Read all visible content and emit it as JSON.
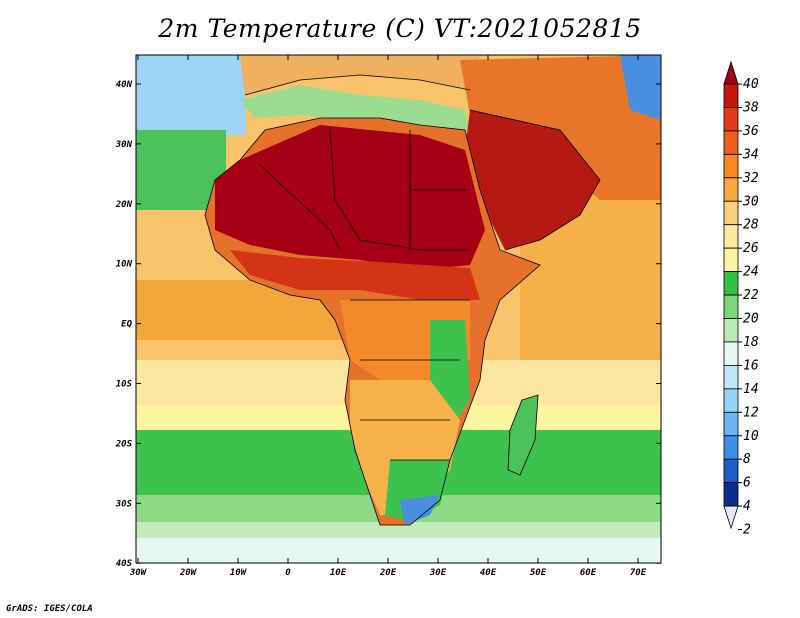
{
  "title": "2m Temperature (C) VT:2021052815",
  "credit": "GrADS: IGES/COLA",
  "map": {
    "lat_labels": [
      "40N",
      "30N",
      "20N",
      "10N",
      "EQ",
      "10S",
      "20S",
      "30S",
      "40S"
    ],
    "lon_labels": [
      "30W",
      "20W",
      "10W",
      "0",
      "10E",
      "20E",
      "30E",
      "40E",
      "50E",
      "60E",
      "70E"
    ],
    "ocean_color": "#f5d27a",
    "land_color": "#e8883a"
  },
  "colorbar": {
    "labels": [
      "40",
      "38",
      "36",
      "34",
      "32",
      "30",
      "28",
      "26",
      "24",
      "22",
      "20",
      "18",
      "16",
      "14",
      "12",
      "10",
      "8",
      "6",
      "4",
      "2"
    ],
    "colors": [
      "#a50015",
      "#c8140f",
      "#e23a14",
      "#f05e1e",
      "#f7891f",
      "#f8a83a",
      "#fbd07a",
      "#fde8a0",
      "#faf59e",
      "#32c146",
      "#7fd67a",
      "#b9eab5",
      "#e7f8f3",
      "#bfe7f6",
      "#97d3f5",
      "#6eb6f2",
      "#3a8fe8",
      "#1c5fcb",
      "#0b2d8c",
      "#e9e6f7"
    ]
  }
}
